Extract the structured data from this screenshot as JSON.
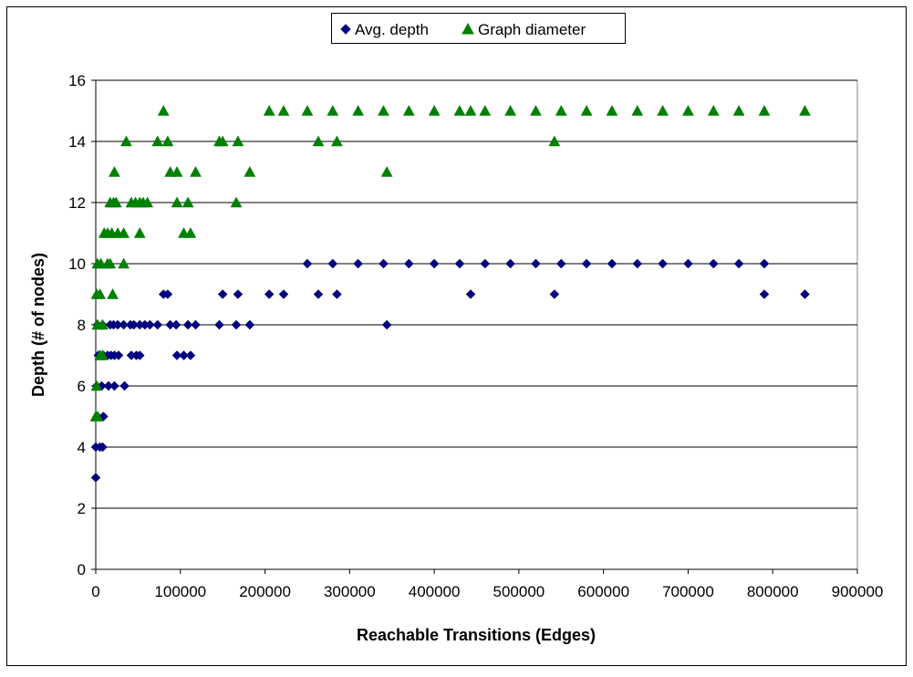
{
  "chart_data": {
    "type": "scatter",
    "title": "",
    "xlabel": "Reachable Transitions (Edges)",
    "ylabel": "Depth (# of nodes)",
    "xlim": [
      0,
      900000
    ],
    "ylim": [
      0,
      16
    ],
    "x_ticks": [
      0,
      100000,
      200000,
      300000,
      400000,
      500000,
      600000,
      700000,
      800000,
      900000
    ],
    "y_ticks": [
      0,
      2,
      4,
      6,
      8,
      10,
      12,
      14,
      16
    ],
    "grid": "horizontal major gridlines",
    "legend": "top-center",
    "series": [
      {
        "name": "Avg. depth",
        "marker": "diamond",
        "color": "#000080",
        "points": [
          [
            0,
            3
          ],
          [
            0,
            4
          ],
          [
            2000,
            5
          ],
          [
            5000,
            4
          ],
          [
            8000,
            4
          ],
          [
            9000,
            5
          ],
          [
            1000,
            6
          ],
          [
            7000,
            6
          ],
          [
            15000,
            6
          ],
          [
            22000,
            6
          ],
          [
            34000,
            6
          ],
          [
            3000,
            7
          ],
          [
            9000,
            7
          ],
          [
            14000,
            7
          ],
          [
            18000,
            7
          ],
          [
            22000,
            7
          ],
          [
            27000,
            7
          ],
          [
            42000,
            7
          ],
          [
            48000,
            7
          ],
          [
            52000,
            7
          ],
          [
            96000,
            7
          ],
          [
            104000,
            7
          ],
          [
            112000,
            7
          ],
          [
            2000,
            8
          ],
          [
            8000,
            8
          ],
          [
            17000,
            8
          ],
          [
            21000,
            8
          ],
          [
            26000,
            8
          ],
          [
            33000,
            8
          ],
          [
            41000,
            8
          ],
          [
            45000,
            8
          ],
          [
            52000,
            8
          ],
          [
            58000,
            8
          ],
          [
            64000,
            8
          ],
          [
            73000,
            8
          ],
          [
            88000,
            8
          ],
          [
            95000,
            8
          ],
          [
            109000,
            8
          ],
          [
            118000,
            8
          ],
          [
            146000,
            8
          ],
          [
            166000,
            8
          ],
          [
            182000,
            8
          ],
          [
            344000,
            8
          ],
          [
            80000,
            9
          ],
          [
            85000,
            9
          ],
          [
            150000,
            9
          ],
          [
            168000,
            9
          ],
          [
            205000,
            9
          ],
          [
            222000,
            9
          ],
          [
            263000,
            9
          ],
          [
            285000,
            9
          ],
          [
            443000,
            9
          ],
          [
            542000,
            9
          ],
          [
            790000,
            9
          ],
          [
            838000,
            9
          ],
          [
            250000,
            10
          ],
          [
            280000,
            10
          ],
          [
            310000,
            10
          ],
          [
            340000,
            10
          ],
          [
            370000,
            10
          ],
          [
            400000,
            10
          ],
          [
            430000,
            10
          ],
          [
            460000,
            10
          ],
          [
            490000,
            10
          ],
          [
            520000,
            10
          ],
          [
            550000,
            10
          ],
          [
            580000,
            10
          ],
          [
            610000,
            10
          ],
          [
            640000,
            10
          ],
          [
            670000,
            10
          ],
          [
            700000,
            10
          ],
          [
            730000,
            10
          ],
          [
            760000,
            10
          ],
          [
            790000,
            10
          ]
        ]
      },
      {
        "name": "Graph diameter",
        "marker": "triangle",
        "color": "#008000",
        "points": [
          [
            0,
            5
          ],
          [
            2000,
            5
          ],
          [
            1000,
            6
          ],
          [
            5000,
            7
          ],
          [
            8000,
            7
          ],
          [
            2000,
            8
          ],
          [
            8000,
            8
          ],
          [
            1000,
            9
          ],
          [
            5000,
            9
          ],
          [
            20000,
            9
          ],
          [
            2000,
            10
          ],
          [
            6000,
            10
          ],
          [
            14000,
            10
          ],
          [
            17000,
            10
          ],
          [
            33000,
            10
          ],
          [
            10000,
            11
          ],
          [
            14000,
            11
          ],
          [
            19000,
            11
          ],
          [
            26000,
            11
          ],
          [
            33000,
            11
          ],
          [
            52000,
            11
          ],
          [
            104000,
            11
          ],
          [
            112000,
            11
          ],
          [
            17000,
            12
          ],
          [
            21000,
            12
          ],
          [
            24000,
            12
          ],
          [
            42000,
            12
          ],
          [
            47000,
            12
          ],
          [
            52000,
            12
          ],
          [
            56000,
            12
          ],
          [
            61000,
            12
          ],
          [
            96000,
            12
          ],
          [
            109000,
            12
          ],
          [
            166000,
            12
          ],
          [
            22000,
            13
          ],
          [
            88000,
            13
          ],
          [
            96000,
            13
          ],
          [
            118000,
            13
          ],
          [
            182000,
            13
          ],
          [
            344000,
            13
          ],
          [
            36000,
            14
          ],
          [
            73000,
            14
          ],
          [
            85000,
            14
          ],
          [
            146000,
            14
          ],
          [
            150000,
            14
          ],
          [
            168000,
            14
          ],
          [
            263000,
            14
          ],
          [
            285000,
            14
          ],
          [
            542000,
            14
          ],
          [
            80000,
            15
          ],
          [
            205000,
            15
          ],
          [
            222000,
            15
          ],
          [
            250000,
            15
          ],
          [
            280000,
            15
          ],
          [
            310000,
            15
          ],
          [
            340000,
            15
          ],
          [
            370000,
            15
          ],
          [
            400000,
            15
          ],
          [
            430000,
            15
          ],
          [
            443000,
            15
          ],
          [
            460000,
            15
          ],
          [
            490000,
            15
          ],
          [
            520000,
            15
          ],
          [
            550000,
            15
          ],
          [
            580000,
            15
          ],
          [
            610000,
            15
          ],
          [
            640000,
            15
          ],
          [
            670000,
            15
          ],
          [
            700000,
            15
          ],
          [
            730000,
            15
          ],
          [
            760000,
            15
          ],
          [
            790000,
            15
          ],
          [
            838000,
            15
          ]
        ]
      }
    ]
  }
}
